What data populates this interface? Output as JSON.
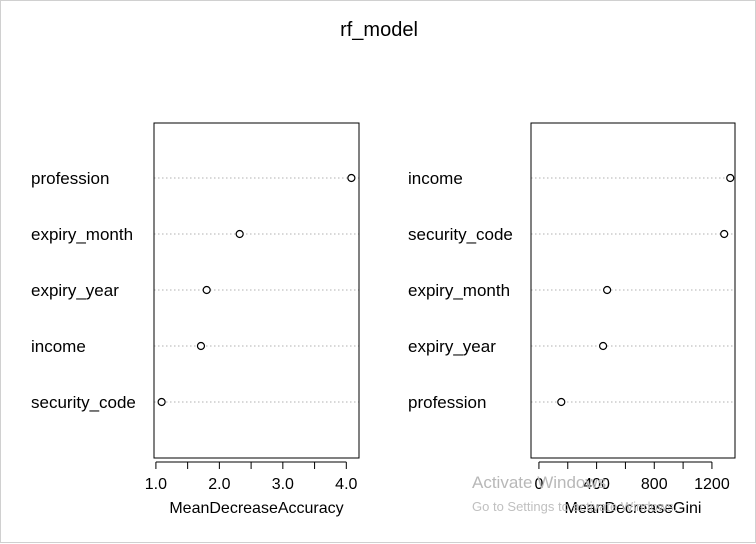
{
  "title": "rf_model",
  "watermark": {
    "line1": "Activate Windows",
    "line2": "Go to Settings to activate Windows."
  },
  "chart_data": [
    {
      "type": "scatter",
      "plot": "dotchart",
      "categories": [
        "profession",
        "expiry_month",
        "expiry_year",
        "income",
        "security_code"
      ],
      "values": [
        4.08,
        2.32,
        1.8,
        1.71,
        1.09
      ],
      "xlabel": "MeanDecreaseAccuracy",
      "xlim": [
        0.97,
        4.2
      ],
      "xticks": [
        1.0,
        1.5,
        2.0,
        2.5,
        3.0,
        3.5,
        4.0
      ],
      "xtick_labels": [
        "1.0",
        "",
        "2.0",
        "",
        "3.0",
        "",
        "4.0"
      ],
      "grid": "dotted horizontal"
    },
    {
      "type": "scatter",
      "plot": "dotchart",
      "categories": [
        "income",
        "security_code",
        "expiry_month",
        "expiry_year",
        "profession"
      ],
      "values": [
        1327,
        1285,
        473,
        445,
        155
      ],
      "xlabel": "MeanDecreaseGini",
      "xlim": [
        -55,
        1360
      ],
      "xticks": [
        0,
        200,
        400,
        600,
        800,
        1000,
        1200
      ],
      "xtick_labels": [
        "0",
        "",
        "400",
        "",
        "800",
        "",
        "1200"
      ],
      "grid": "dotted horizontal"
    }
  ]
}
